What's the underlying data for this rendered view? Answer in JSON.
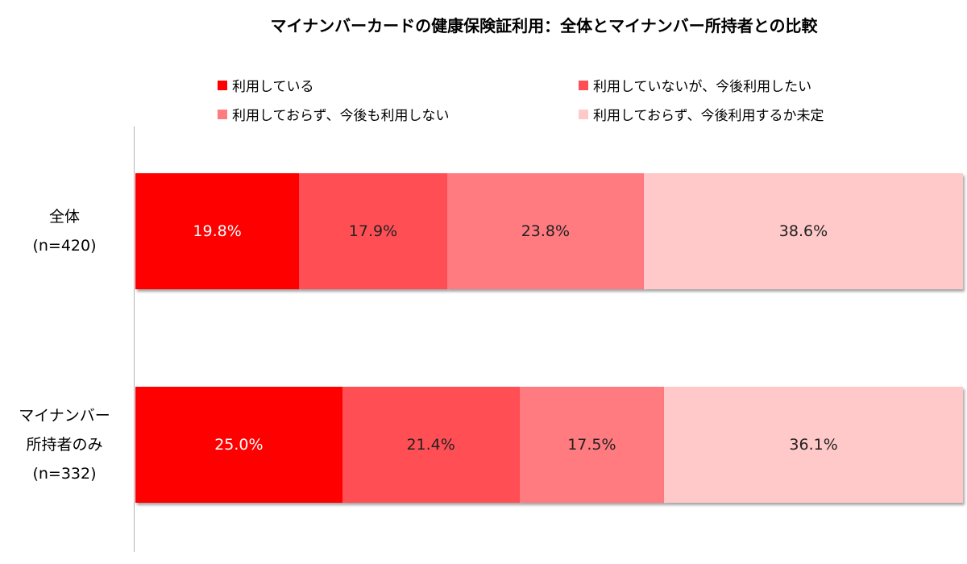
{
  "chart_data": {
    "type": "bar",
    "orientation": "horizontal",
    "stacked": true,
    "title": "マイナンバーカードの健康保険証利用：全体とマイナンバー所持者との比較",
    "categories": [
      [
        "全体",
        "(n=420)"
      ],
      [
        "マイナンバー",
        "所持者のみ",
        "(n=332)"
      ]
    ],
    "series": [
      {
        "name": "利用している",
        "color": "#ff0000",
        "label_color": "#ffffff",
        "values": [
          19.8,
          25.0
        ],
        "labels": [
          "19.8%",
          "25.0%"
        ]
      },
      {
        "name": "利用していないが、今後利用したい",
        "color": "#ff4f55",
        "label_color": "#222222",
        "values": [
          17.9,
          21.4
        ],
        "labels": [
          "17.9%",
          "21.4%"
        ]
      },
      {
        "name": "利用しておらず、今後も利用しない",
        "color": "#ff7b80",
        "label_color": "#222222",
        "values": [
          23.8,
          17.5
        ],
        "labels": [
          "23.8%",
          "17.5%"
        ]
      },
      {
        "name": "利用しておらず、今後利用するか未定",
        "color": "#ffc9c9",
        "label_color": "#222222",
        "values": [
          38.6,
          36.1
        ],
        "labels": [
          "38.6%",
          "36.1%"
        ]
      }
    ],
    "xlim": [
      0,
      100
    ],
    "legend_position": "top",
    "grid": false
  }
}
